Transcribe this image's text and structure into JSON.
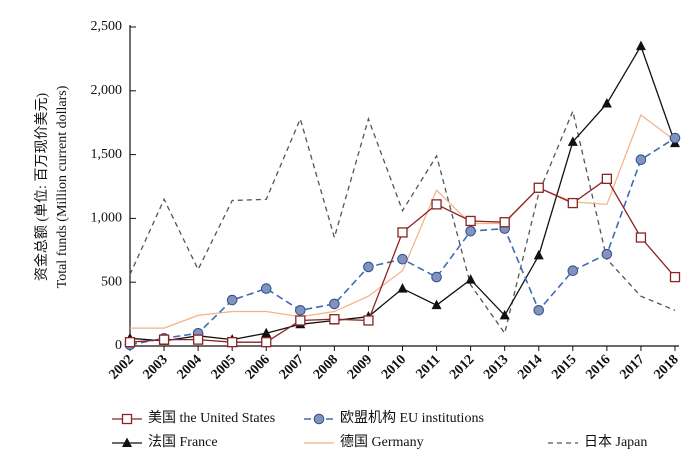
{
  "chart_data": {
    "type": "line",
    "title": "",
    "ylabel": "资金总额 (单位: 百万现价美元)",
    "ylabel_en": "Total funds (Million current dollars)",
    "xlabel": "",
    "x": [
      "2002",
      "2003",
      "2004",
      "2005",
      "2006",
      "2007",
      "2008",
      "2009",
      "2010",
      "2011",
      "2012",
      "2013",
      "2014",
      "2015",
      "2016",
      "2017",
      "2018"
    ],
    "ylim": [
      0,
      2500
    ],
    "yticks": [
      0,
      500,
      1000,
      1500,
      2000,
      2500
    ],
    "ytick_labels": [
      "0",
      "500",
      "1,000",
      "1,500",
      "2,000",
      "2,500"
    ],
    "grid": false,
    "legend_position": "bottom",
    "series": [
      {
        "key": "us",
        "name": "美国 the United States",
        "color": "#8B2323",
        "line": "solid",
        "marker": "square-open",
        "values": [
          30,
          50,
          50,
          30,
          30,
          200,
          210,
          200,
          890,
          1110,
          980,
          970,
          1240,
          1120,
          1310,
          850,
          540
        ]
      },
      {
        "key": "eu",
        "name": "欧盟机构 EU institutions",
        "color": "#3E6DB5",
        "line": "dashed",
        "marker": "circle-filled",
        "values": [
          10,
          60,
          100,
          360,
          450,
          280,
          330,
          620,
          680,
          540,
          900,
          920,
          280,
          590,
          720,
          1460,
          1630
        ]
      },
      {
        "key": "fr",
        "name": "法国 France",
        "color": "#111111",
        "line": "solid",
        "marker": "triangle-filled",
        "values": [
          60,
          40,
          80,
          50,
          100,
          170,
          200,
          230,
          450,
          320,
          520,
          240,
          710,
          1600,
          1900,
          2350,
          1590
        ]
      },
      {
        "key": "de",
        "name": "德国 Germany",
        "color": "#F4B183",
        "line": "solid",
        "marker": "none",
        "values": [
          140,
          140,
          240,
          270,
          270,
          230,
          270,
          390,
          590,
          1220,
          960,
          960,
          1240,
          1130,
          1110,
          1810,
          1610
        ]
      },
      {
        "key": "jp",
        "name": "日本 Japan",
        "color": "#555555",
        "line": "dashed",
        "marker": "none",
        "values": [
          560,
          1150,
          600,
          1140,
          1150,
          1780,
          850,
          1780,
          1060,
          1490,
          480,
          100,
          1200,
          1840,
          680,
          390,
          280
        ]
      }
    ]
  }
}
